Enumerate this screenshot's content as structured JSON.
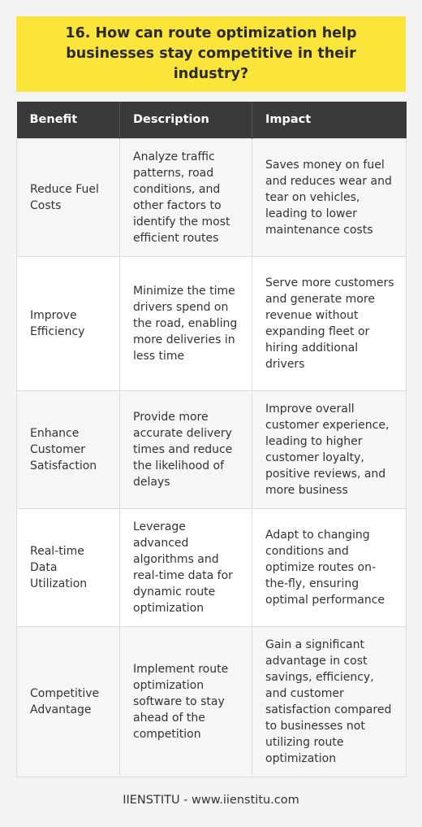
{
  "title": "16. How can route optimization help businesses stay competitive in their industry?",
  "table": {
    "headers": [
      "Benefit",
      "Description",
      "Impact"
    ],
    "rows": [
      {
        "benefit": "Reduce Fuel Costs",
        "description": "Analyze traffic patterns, road conditions, and other factors to identify the most efficient routes",
        "impact": "Saves money on fuel and reduces wear and tear on vehicles, leading to lower maintenance costs"
      },
      {
        "benefit": "Improve Efficiency",
        "description": "Minimize the time drivers spend on the road, enabling more deliveries in less time",
        "impact": "Serve more customers and generate more revenue without expanding fleet or hiring additional drivers"
      },
      {
        "benefit": "Enhance Customer Satisfaction",
        "description": "Provide more accurate delivery times and reduce the likelihood of delays",
        "impact": "Improve overall customer experience, leading to higher customer loyalty, positive reviews, and more business"
      },
      {
        "benefit": "Real-time Data Utilization",
        "description": "Leverage advanced algorithms and real-time data for dynamic route optimization",
        "impact": "Adapt to changing conditions and optimize routes on-the-fly, ensuring optimal performance"
      },
      {
        "benefit": "Competitive Advantage",
        "description": "Implement route optimization software to stay ahead of the competition",
        "impact": "Gain a significant advantage in cost savings, efficiency, and customer satisfaction compared to businesses not utilizing route optimization"
      }
    ]
  },
  "footer": "IIENSTITU - www.iienstitu.com",
  "colors": {
    "title_background": "#fbe53b",
    "header_background": "#3a3a3a",
    "page_background": "#f3f3f3"
  }
}
